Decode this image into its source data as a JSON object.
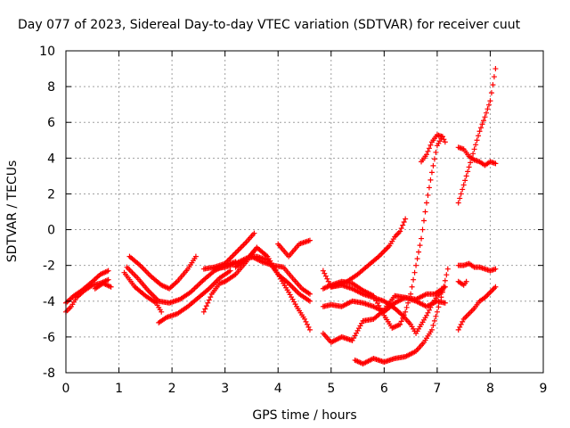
{
  "chart_data": {
    "type": "scatter",
    "title": "Day 077 of 2023, Sidereal Day-to-day VTEC variation (SDTVAR) for receiver cuut",
    "xlabel": "GPS time / hours",
    "ylabel": "SDTVAR / TECUs",
    "xlim": [
      0,
      9
    ],
    "ylim": [
      -8,
      10
    ],
    "xticks": [
      0,
      1,
      2,
      3,
      4,
      5,
      6,
      7,
      8,
      9
    ],
    "yticks": [
      -8,
      -6,
      -4,
      -2,
      0,
      2,
      4,
      6,
      8,
      10
    ],
    "grid": true,
    "marker": "+",
    "color": "#ff0000",
    "series": [
      {
        "name": "s1",
        "x": [
          0.0,
          0.15,
          0.3,
          0.5,
          0.65,
          0.8
        ],
        "y": [
          -4.1,
          -3.7,
          -3.4,
          -2.9,
          -2.5,
          -2.3
        ]
      },
      {
        "name": "s2",
        "x": [
          0.0,
          0.1,
          0.2,
          0.35,
          0.5,
          0.65,
          0.8
        ],
        "y": [
          -4.6,
          -4.3,
          -3.8,
          -3.4,
          -3.1,
          -3.0,
          -2.8
        ]
      },
      {
        "name": "s3",
        "x": [
          0.55,
          0.7,
          0.85
        ],
        "y": [
          -3.3,
          -3.0,
          -3.2
        ]
      },
      {
        "name": "s4",
        "x": [
          1.1,
          1.3,
          1.5,
          1.7,
          1.8
        ],
        "y": [
          -2.4,
          -3.2,
          -3.7,
          -4.1,
          -4.6
        ]
      },
      {
        "name": "s5",
        "x": [
          1.2,
          1.4,
          1.6,
          1.8,
          1.95,
          2.1,
          2.3,
          2.45
        ],
        "y": [
          -1.5,
          -2.0,
          -2.6,
          -3.1,
          -3.3,
          -2.9,
          -2.2,
          -1.5
        ]
      },
      {
        "name": "s6",
        "x": [
          1.15,
          1.35,
          1.55,
          1.75,
          1.95,
          2.15,
          2.35,
          2.6,
          2.8,
          3.0,
          3.2
        ],
        "y": [
          -2.1,
          -2.7,
          -3.4,
          -4.0,
          -4.1,
          -3.9,
          -3.5,
          -2.8,
          -2.3,
          -2.0,
          -1.8
        ]
      },
      {
        "name": "s7",
        "x": [
          1.75,
          1.9,
          2.1,
          2.3,
          2.5,
          2.7,
          2.9,
          3.1
        ],
        "y": [
          -5.2,
          -4.9,
          -4.7,
          -4.3,
          -3.8,
          -3.3,
          -2.7,
          -2.3
        ]
      },
      {
        "name": "s8",
        "x": [
          2.6,
          2.75,
          2.9,
          3.0,
          3.2,
          3.4,
          3.6
        ],
        "y": [
          -4.6,
          -3.6,
          -3.0,
          -2.9,
          -2.5,
          -1.8,
          -1.0
        ]
      },
      {
        "name": "s9",
        "x": [
          2.6,
          2.8,
          3.0,
          3.2,
          3.4,
          3.55
        ],
        "y": [
          -2.2,
          -2.1,
          -1.9,
          -1.3,
          -0.7,
          -0.2
        ]
      },
      {
        "name": "s10",
        "x": [
          2.8,
          3.0,
          3.2,
          3.4,
          3.6,
          3.8,
          4.0,
          4.2,
          4.35,
          4.5,
          4.6
        ],
        "y": [
          -2.2,
          -2.1,
          -1.9,
          -1.6,
          -1.5,
          -1.7,
          -2.5,
          -3.5,
          -4.3,
          -5.0,
          -5.6
        ]
      },
      {
        "name": "s11",
        "x": [
          3.2,
          3.4,
          3.6,
          3.8,
          4.0,
          4.2,
          4.4,
          4.6
        ],
        "y": [
          -2.1,
          -1.7,
          -1.0,
          -1.5,
          -2.5,
          -3.0,
          -3.6,
          -4.0
        ]
      },
      {
        "name": "s12",
        "x": [
          3.5,
          3.7,
          3.9,
          4.1,
          4.3,
          4.45,
          4.6
        ],
        "y": [
          -1.5,
          -1.8,
          -2.0,
          -2.1,
          -2.8,
          -3.3,
          -3.6
        ]
      },
      {
        "name": "s13",
        "x": [
          4.0,
          4.2,
          4.4,
          4.6
        ],
        "y": [
          -0.8,
          -1.5,
          -0.8,
          -0.6
        ]
      },
      {
        "name": "s14",
        "x": [
          4.85,
          5.0,
          5.2,
          5.4,
          5.6,
          5.8,
          6.0,
          6.2,
          6.4,
          6.6,
          6.8,
          6.95,
          7.05,
          7.15
        ],
        "y": [
          -4.3,
          -4.2,
          -4.3,
          -4.0,
          -4.1,
          -4.3,
          -4.6,
          -4.1,
          -3.8,
          -3.9,
          -3.6,
          -3.6,
          -3.4,
          -3.2
        ]
      },
      {
        "name": "s15",
        "x": [
          4.85,
          5.0,
          5.2,
          5.4,
          5.6,
          5.8,
          6.0,
          6.2,
          6.4,
          6.6,
          6.8,
          7.0,
          7.15
        ],
        "y": [
          -5.8,
          -6.3,
          -6.0,
          -6.2,
          -5.1,
          -5.0,
          -4.5,
          -3.7,
          -3.8,
          -4.0,
          -4.3,
          -4.0,
          -4.1
        ]
      },
      {
        "name": "s16",
        "x": [
          4.85,
          5.0,
          5.2,
          5.4,
          5.6,
          5.8,
          6.0,
          6.2,
          6.35,
          6.5,
          6.6,
          6.7,
          6.8,
          6.9,
          7.0,
          7.1
        ],
        "y": [
          -2.3,
          -3.2,
          -3.1,
          -3.3,
          -3.6,
          -3.8,
          -4.0,
          -4.4,
          -4.8,
          -5.3,
          -5.8,
          -5.3,
          -4.8,
          -4.2,
          -3.7,
          -3.4
        ]
      },
      {
        "name": "s17",
        "x": [
          4.85,
          5.0,
          5.2,
          5.4,
          5.6,
          5.8,
          6.0,
          6.15,
          6.3,
          6.4,
          6.5,
          6.6,
          6.7,
          6.8,
          6.9,
          7.0,
          7.1
        ],
        "y": [
          -3.3,
          -3.1,
          -2.9,
          -3.0,
          -3.4,
          -3.7,
          -4.8,
          -5.5,
          -5.3,
          -4.6,
          -3.6,
          -2.0,
          -0.5,
          1.5,
          3.2,
          4.7,
          5.2
        ]
      },
      {
        "name": "s18",
        "x": [
          5.0,
          5.3,
          5.5,
          5.7,
          5.9,
          6.1,
          6.2,
          6.3,
          6.4
        ],
        "y": [
          -3.2,
          -2.9,
          -2.5,
          -2.0,
          -1.5,
          -0.9,
          -0.4,
          -0.1,
          0.6
        ]
      },
      {
        "name": "s19",
        "x": [
          5.45,
          5.6,
          5.8,
          6.0,
          6.2,
          6.4,
          6.6,
          6.75,
          6.9,
          7.0,
          7.1,
          7.2
        ],
        "y": [
          -7.3,
          -7.5,
          -7.2,
          -7.4,
          -7.2,
          -7.1,
          -6.8,
          -6.3,
          -5.6,
          -4.6,
          -3.5,
          -2.2
        ]
      },
      {
        "name": "s20",
        "x": [
          6.7,
          6.8,
          6.9,
          7.0,
          7.1,
          7.15
        ],
        "y": [
          3.8,
          4.2,
          4.9,
          5.3,
          5.2,
          4.9
        ]
      },
      {
        "name": "s21",
        "x": [
          7.4,
          7.5,
          7.6,
          7.7,
          7.8,
          7.9,
          8.0,
          8.1
        ],
        "y": [
          -2.0,
          -2.0,
          -1.9,
          -2.1,
          -2.1,
          -2.2,
          -2.3,
          -2.2
        ]
      },
      {
        "name": "s22",
        "x": [
          7.4,
          7.5,
          7.55
        ],
        "y": [
          -2.9,
          -3.1,
          -2.9
        ]
      },
      {
        "name": "s23",
        "x": [
          7.4,
          7.5,
          7.6,
          7.7,
          7.8,
          7.9,
          8.0,
          8.1
        ],
        "y": [
          -5.6,
          -5.0,
          -4.7,
          -4.4,
          -4.0,
          -3.8,
          -3.5,
          -3.2
        ]
      },
      {
        "name": "s24",
        "x": [
          7.4,
          7.5,
          7.6,
          7.7,
          7.8,
          7.9,
          8.0,
          8.1
        ],
        "y": [
          4.6,
          4.5,
          4.1,
          3.9,
          3.8,
          3.6,
          3.8,
          3.7
        ]
      },
      {
        "name": "s25",
        "x": [
          7.4,
          7.5,
          7.6,
          7.7,
          7.8,
          7.9,
          8.0,
          8.1
        ],
        "y": [
          1.5,
          2.5,
          3.5,
          4.5,
          5.5,
          6.3,
          7.2,
          9.0
        ]
      }
    ]
  }
}
